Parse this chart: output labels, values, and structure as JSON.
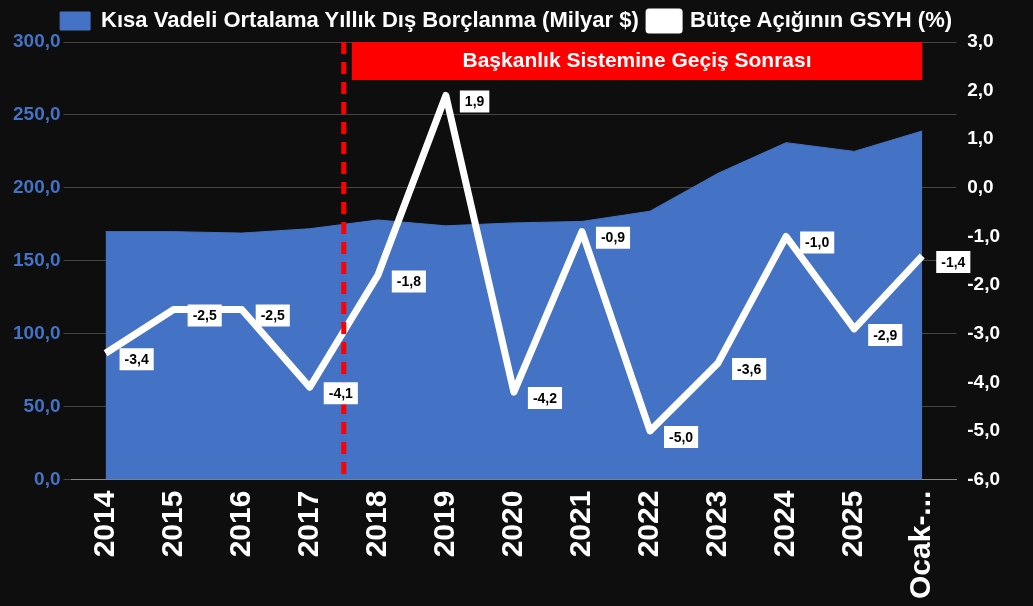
{
  "chart_data": {
    "type": "area",
    "categories": [
      "2014",
      "2015",
      "2016",
      "2017",
      "2018",
      "2019",
      "2020",
      "2021",
      "2022",
      "2023",
      "2024",
      "2025",
      "Ocak-..."
    ],
    "series": [
      {
        "name": "Kısa Vadeli Ortalama Yıllık Dış Borçlanma (Milyar $)",
        "color": "#4472c4",
        "values": [
          170,
          170,
          169,
          172,
          178,
          174,
          176,
          177,
          184,
          210,
          231,
          225,
          239
        ]
      },
      {
        "name": "Bütçe Açığının GSYH (%)",
        "type": "line",
        "axis": "y2",
        "color": "#ffffff",
        "values": [
          -3.4,
          -2.5,
          -2.5,
          -4.1,
          -1.8,
          1.9,
          -4.2,
          -0.9,
          -5.0,
          -3.6,
          -1.0,
          -2.9,
          -1.4
        ],
        "value_labels": [
          "-3,4",
          "-2,5",
          "-2,5",
          "-4,1",
          "-1,8",
          "1,9",
          "-4,2",
          "-0,9",
          "-5,0",
          "-3,6",
          "-1,0",
          "-2,9",
          "-1,4"
        ]
      }
    ],
    "ylim": [
      0,
      300
    ],
    "yticks": [
      {
        "value": 0,
        "label": "0,0"
      },
      {
        "value": 50,
        "label": "50,0"
      },
      {
        "value": 100,
        "label": "100,0"
      },
      {
        "value": 150,
        "label": "150,0"
      },
      {
        "value": 200,
        "label": "200,0"
      },
      {
        "value": 250,
        "label": "250,0"
      },
      {
        "value": 300,
        "label": "300,0"
      }
    ],
    "y2lim": [
      -6,
      3
    ],
    "y2ticks": [
      {
        "value": -6,
        "label": "-6,0"
      },
      {
        "value": -5,
        "label": "-5,0"
      },
      {
        "value": -4,
        "label": "-4,0"
      },
      {
        "value": -3,
        "label": "-3,0"
      },
      {
        "value": -2,
        "label": "-2,0"
      },
      {
        "value": -1,
        "label": "-1,0"
      },
      {
        "value": 0,
        "label": "0,0"
      },
      {
        "value": 1,
        "label": "1,0"
      },
      {
        "value": 2,
        "label": "2,0"
      },
      {
        "value": 3,
        "label": "3,0"
      }
    ],
    "ref_lines": [
      {
        "axis": "x",
        "value": "2018",
        "color": "#ff0000",
        "line_style": "dashed"
      }
    ],
    "bands": [
      {
        "axis": "x",
        "from": "2018",
        "to": "Ocak-...",
        "label": "Başkanlık Sistemine Geçiş Sonrası",
        "color": "#ff0000"
      }
    ],
    "grid": "y",
    "legend": "top"
  }
}
